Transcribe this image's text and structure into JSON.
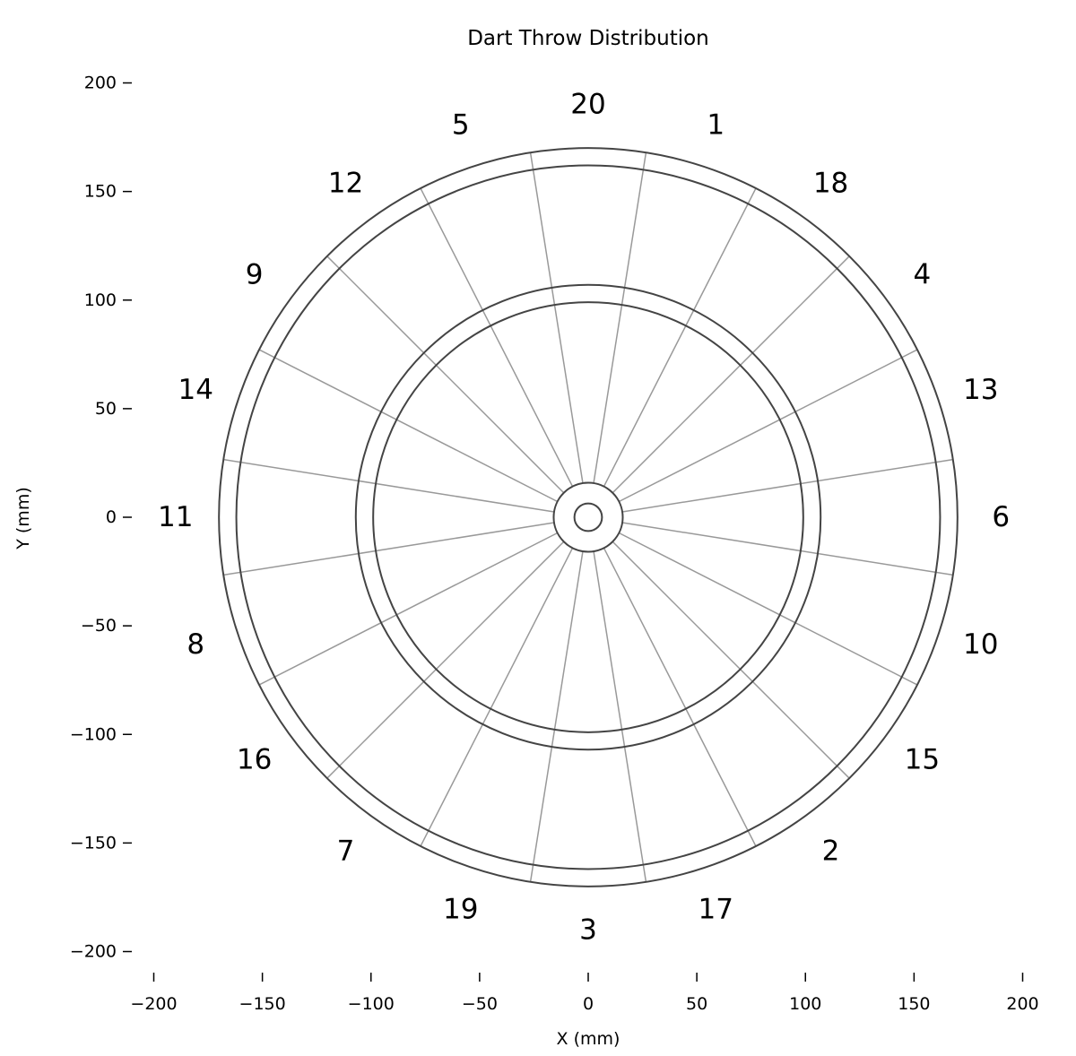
{
  "chart_data": {
    "type": "scatter",
    "title": "Dart Throw Distribution",
    "xlabel": "X (mm)",
    "ylabel": "Y (mm)",
    "xlim": [
      -200,
      200
    ],
    "ylim": [
      -200,
      200
    ],
    "xticks": [
      -200,
      -150,
      -100,
      -50,
      0,
      50,
      100,
      150,
      200
    ],
    "yticks": [
      -200,
      -150,
      -100,
      -50,
      0,
      50,
      100,
      150,
      200
    ],
    "xtick_labels": [
      "−200",
      "−150",
      "−100",
      "−50",
      "0",
      "50",
      "100",
      "150",
      "200"
    ],
    "ytick_labels": [
      "−200",
      "−150",
      "−100",
      "−50",
      "0",
      "50",
      "100",
      "150",
      "200"
    ],
    "board_rings_mm": [
      6.35,
      15.9,
      99,
      107,
      162,
      170
    ],
    "segment_numbers": [
      "20",
      "1",
      "18",
      "4",
      "13",
      "6",
      "10",
      "15",
      "2",
      "17",
      "3",
      "19",
      "7",
      "16",
      "8",
      "11",
      "14",
      "9",
      "12",
      "5"
    ],
    "series": [],
    "grid": false
  }
}
